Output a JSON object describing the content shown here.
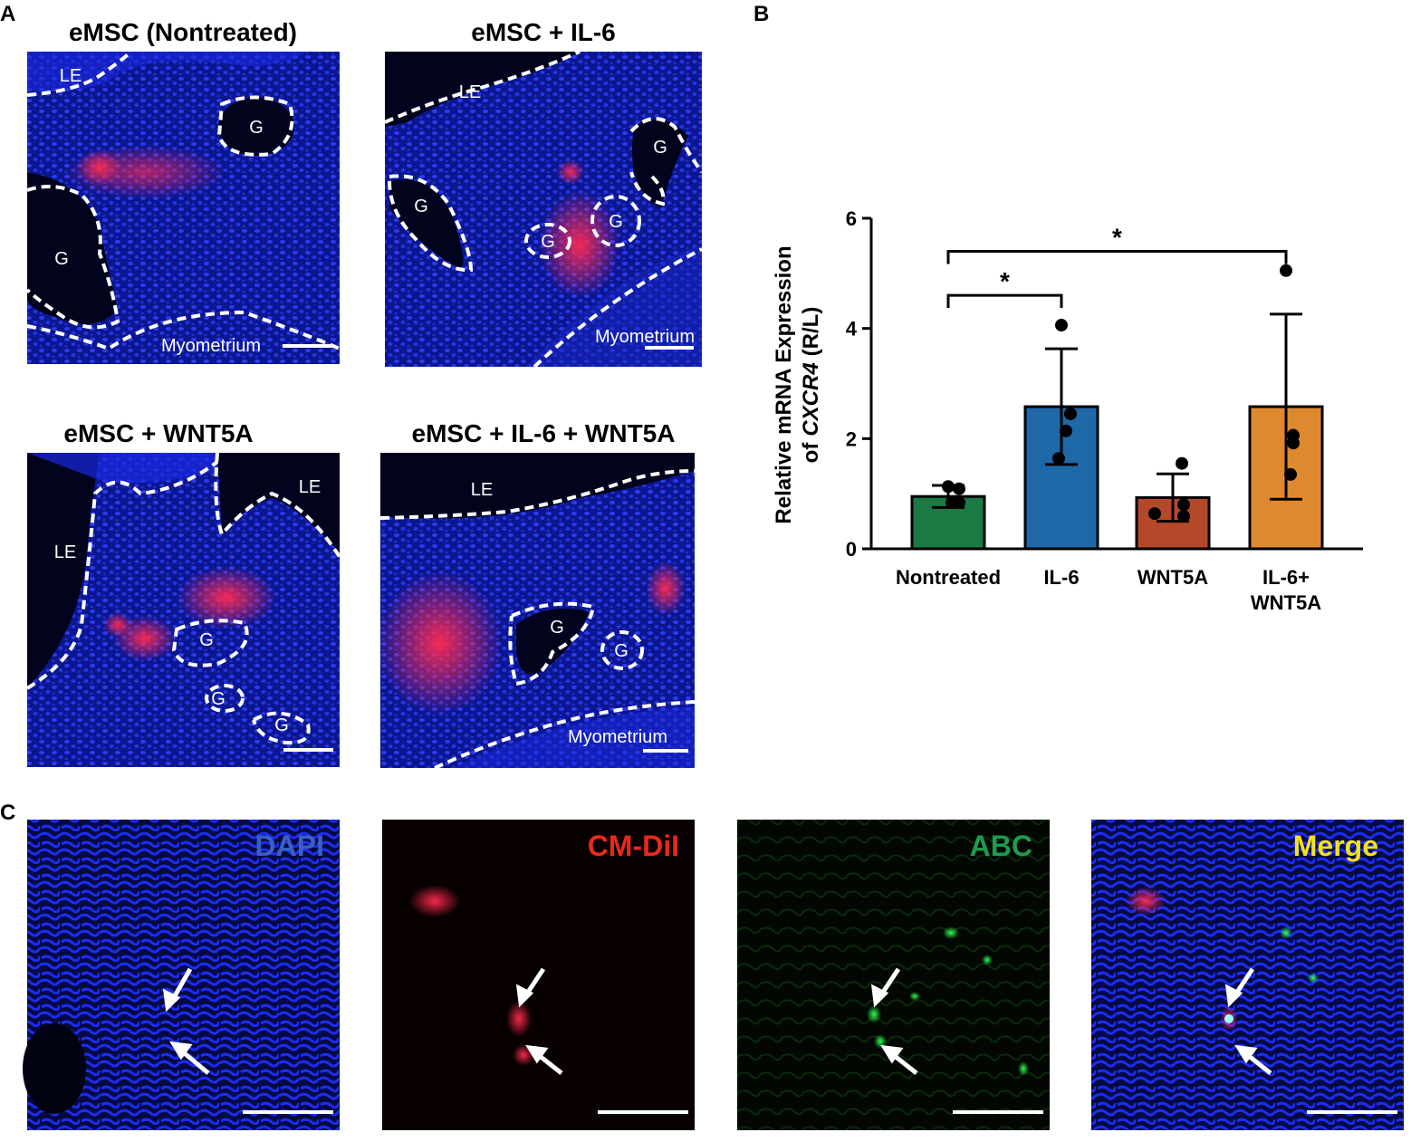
{
  "panel_a": {
    "label": "A",
    "images": [
      {
        "title": "eMSC (Nontreated)",
        "annotations": [
          "LE",
          "G",
          "G",
          "Myometrium"
        ]
      },
      {
        "title": "eMSC + IL-6",
        "annotations": [
          "LE",
          "G",
          "G",
          "G",
          "G",
          "Myometrium"
        ]
      },
      {
        "title": "eMSC + WNT5A",
        "annotations": [
          "LE",
          "LE",
          "G",
          "G",
          "G"
        ]
      },
      {
        "title": "eMSC + IL-6 + WNT5A",
        "annotations": [
          "LE",
          "G",
          "G",
          "Myometrium"
        ]
      }
    ]
  },
  "panel_b": {
    "label": "B"
  },
  "chart_data": {
    "type": "bar",
    "y_label": {
      "line1": "Relative mRNA Expression",
      "prefix": "of",
      "gene": "CXCR4",
      "suffix": "(R/L)"
    },
    "categories": [
      "Nontreated",
      "IL-6",
      "WNT5A",
      "IL-6+ WNT5A"
    ],
    "values": [
      0.95,
      2.58,
      0.93,
      2.58
    ],
    "errors": [
      0.2,
      1.05,
      0.43,
      1.68
    ],
    "points": [
      [
        1.13,
        1.09,
        0.84,
        0.84
      ],
      [
        4.06,
        2.45,
        2.14,
        1.64
      ],
      [
        1.55,
        0.8,
        0.59,
        0.64
      ],
      [
        5.05,
        2.06,
        1.92,
        1.35
      ]
    ],
    "colors": [
      "#1b7a44",
      "#1f68a8",
      "#b6482a",
      "#df892f"
    ],
    "ylim": [
      0,
      6
    ],
    "yticks": [
      0,
      2,
      4,
      6
    ],
    "significance": [
      {
        "from": 0,
        "to": 1,
        "label": "*"
      },
      {
        "from": 0,
        "to": 3,
        "label": "*"
      }
    ]
  },
  "panel_c": {
    "label": "C",
    "images": [
      {
        "channel": "DAPI",
        "color": "#3a5fc4"
      },
      {
        "channel": "CM-DiI",
        "color": "#e8291b"
      },
      {
        "channel": "ABC",
        "color": "#1c9c4c"
      },
      {
        "channel": "Merge",
        "color": "#f2e21c"
      }
    ]
  }
}
